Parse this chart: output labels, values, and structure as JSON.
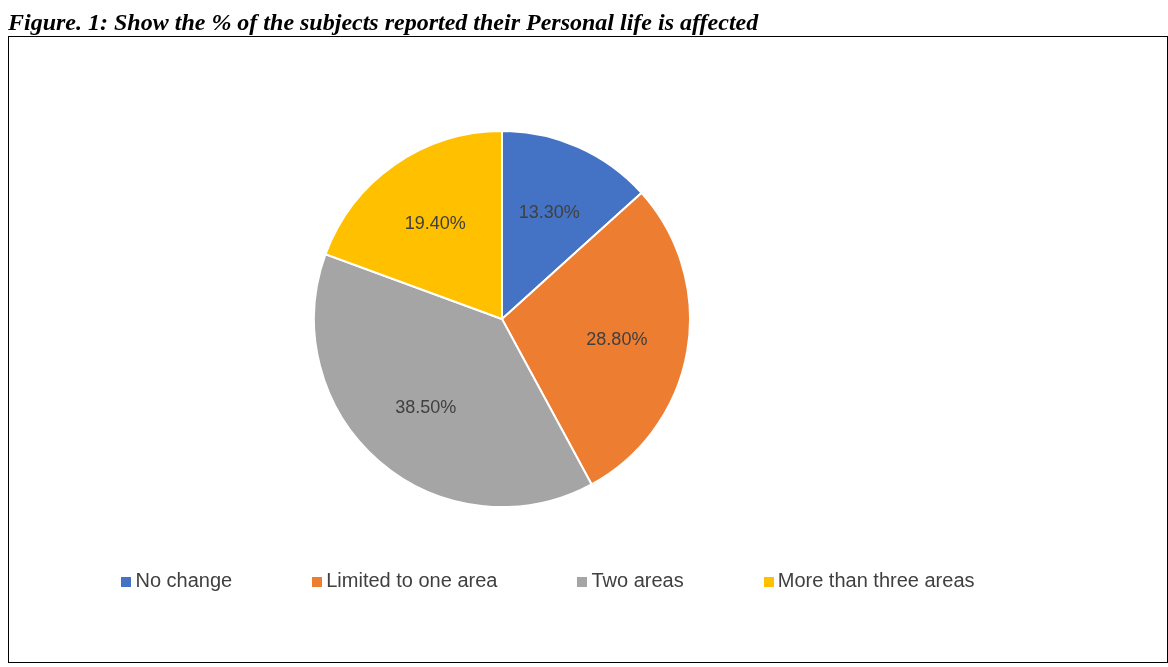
{
  "chart_data": {
    "type": "pie",
    "title": "Figure. 1: Show the % of the subjects reported their Personal life is affected",
    "categories": [
      "No change",
      "Limited to one area",
      "Two areas",
      "More than three areas"
    ],
    "values": [
      13.3,
      28.8,
      38.5,
      19.4
    ],
    "colors": [
      "#4472c4",
      "#ed7d31",
      "#a5a5a5",
      "#ffc000"
    ],
    "value_labels": [
      "13.30%",
      "28.80%",
      "38.50%",
      "19.40%"
    ],
    "legend": "bottom"
  }
}
